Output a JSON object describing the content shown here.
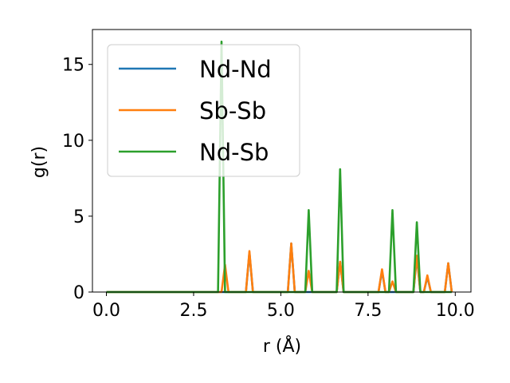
{
  "chart_data": {
    "type": "line",
    "xlabel": "r (Å)",
    "ylabel": "g(r)",
    "xlim": [
      -0.4,
      10.45
    ],
    "ylim": [
      0,
      17.3
    ],
    "xticks": [
      0.0,
      2.5,
      5.0,
      7.5,
      10.0
    ],
    "xtick_labels": [
      "0.0",
      "2.5",
      "5.0",
      "7.5",
      "10.0"
    ],
    "yticks": [
      0,
      5,
      10,
      15
    ],
    "ytick_labels": [
      "0",
      "5",
      "10",
      "15"
    ],
    "grid": false,
    "legend": "top-left",
    "baseline_x": [
      0.0,
      9.9
    ],
    "series": [
      {
        "name": "Nd-Nd",
        "color": "#1f77b4",
        "peaks": [
          {
            "x": 4.1,
            "y": 2.6
          },
          {
            "x": 5.3,
            "y": 3.2
          },
          {
            "x": 6.7,
            "y": 2.0
          },
          {
            "x": 7.9,
            "y": 1.4
          },
          {
            "x": 8.9,
            "y": 2.3
          },
          {
            "x": 9.2,
            "y": 1.0
          },
          {
            "x": 9.8,
            "y": 1.9
          }
        ]
      },
      {
        "name": "Sb-Sb",
        "color": "#ff7f0e",
        "peaks": [
          {
            "x": 3.4,
            "y": 1.8
          },
          {
            "x": 4.1,
            "y": 2.7
          },
          {
            "x": 5.3,
            "y": 3.2
          },
          {
            "x": 5.8,
            "y": 1.4
          },
          {
            "x": 6.7,
            "y": 2.0
          },
          {
            "x": 7.9,
            "y": 1.5
          },
          {
            "x": 8.2,
            "y": 0.7
          },
          {
            "x": 8.9,
            "y": 2.4
          },
          {
            "x": 9.2,
            "y": 1.1
          },
          {
            "x": 9.8,
            "y": 1.9
          }
        ]
      },
      {
        "name": "Nd-Sb",
        "color": "#2ca02c",
        "peaks": [
          {
            "x": 3.3,
            "y": 16.5
          },
          {
            "x": 5.8,
            "y": 5.4
          },
          {
            "x": 6.7,
            "y": 8.1
          },
          {
            "x": 8.2,
            "y": 5.4
          },
          {
            "x": 8.9,
            "y": 4.6
          }
        ]
      }
    ]
  }
}
